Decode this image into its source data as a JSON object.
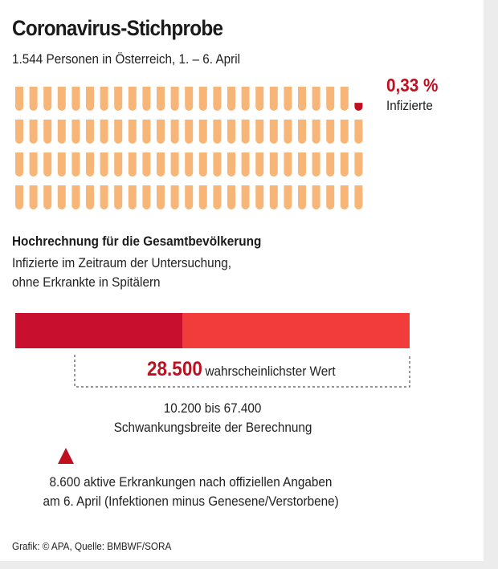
{
  "header": {
    "title": "Coronavirus-Stichprobe",
    "subtitle": "1.544 Personen in Österreich, 1. – 6. April"
  },
  "sample": {
    "percent_label": "0,33 %",
    "percent_caption": "Infizierte",
    "rows": 4,
    "columns": 25,
    "infected_fraction_of_last_tube": 0.33
  },
  "projection": {
    "heading": "Hochrechnung für die Gesamtbevölkerung",
    "desc_line1": "Infizierte im Zeitraum der Untersuchung,",
    "desc_line2": "ohne Erkrankte in Spitälern",
    "likely_value": "28.500",
    "likely_label": "wahrscheinlichster Wert",
    "range_text": "10.200 bis 67.400",
    "range_caption": "Schwankungsbreite der Berechnung",
    "official_line1": "8.600 aktive Erkrankungen nach offiziellen Angaben",
    "official_line2": "am 6. April (Infektionen minus Genesene/Verstorbene)"
  },
  "chart_data": [
    {
      "type": "bar",
      "categories": [
        "Infizierte"
      ],
      "values": [
        0.33
      ],
      "unit": "%",
      "title": "Coronavirus-Stichprobe",
      "subtitle": "1.544 Personen in Österreich, 1. – 6. April"
    },
    {
      "type": "bar",
      "title": "Hochrechnung für die Gesamtbevölkerung",
      "segments": [
        {
          "from": 0,
          "to": 28500,
          "color": "#c8102e"
        },
        {
          "from": 28500,
          "to": 67400,
          "color": "#f23b3b"
        }
      ],
      "most_likely": 28500,
      "range": [
        10200,
        67400
      ],
      "official_active_cases": 8600,
      "xlim": [
        0,
        67400
      ]
    }
  ],
  "colors": {
    "tube": "#f7b677",
    "infected": "#c01020",
    "bar_dark": "#c8102e",
    "bar_light": "#f23b3b",
    "text_red": "#c01020",
    "marker": "#c01020"
  },
  "source": "Grafik: © APA, Quelle: BMBWF/SORA"
}
